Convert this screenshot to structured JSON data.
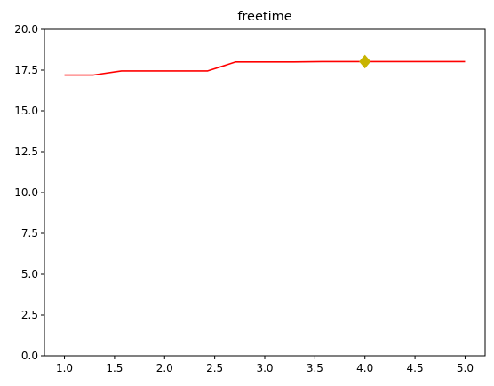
{
  "chart_data": {
    "type": "line",
    "title": "freetime",
    "xlabel": "",
    "ylabel": "",
    "xlim": [
      0.8,
      5.2
    ],
    "ylim": [
      0,
      20
    ],
    "x_ticks": [
      1.0,
      1.5,
      2.0,
      2.5,
      3.0,
      3.5,
      4.0,
      4.5,
      5.0
    ],
    "x_tick_labels": [
      "1.0",
      "1.5",
      "2.0",
      "2.5",
      "3.0",
      "3.5",
      "4.0",
      "4.5",
      "5.0"
    ],
    "y_ticks": [
      0,
      2.5,
      5,
      7.5,
      10,
      12.5,
      15,
      17.5,
      20
    ],
    "y_tick_labels": [
      "0.0",
      "2.5",
      "5.0",
      "7.5",
      "10.0",
      "12.5",
      "15.0",
      "17.5",
      "20.0"
    ],
    "grid": false,
    "series": [
      {
        "color": "#ff0000",
        "x": [
          1.0,
          1.29,
          1.57,
          1.86,
          2.14,
          2.43,
          2.71,
          3.0,
          3.29,
          3.57,
          3.86,
          4.14,
          4.43,
          4.71,
          5.0
        ],
        "y": [
          17.2,
          17.2,
          17.45,
          17.45,
          17.45,
          17.45,
          18.0,
          18.0,
          18.0,
          18.02,
          18.02,
          18.02,
          18.02,
          18.02,
          18.02
        ]
      }
    ],
    "markers": [
      {
        "x": 4.0,
        "y": 18.02,
        "shape": "diamond",
        "color": "#c8b400"
      }
    ]
  }
}
